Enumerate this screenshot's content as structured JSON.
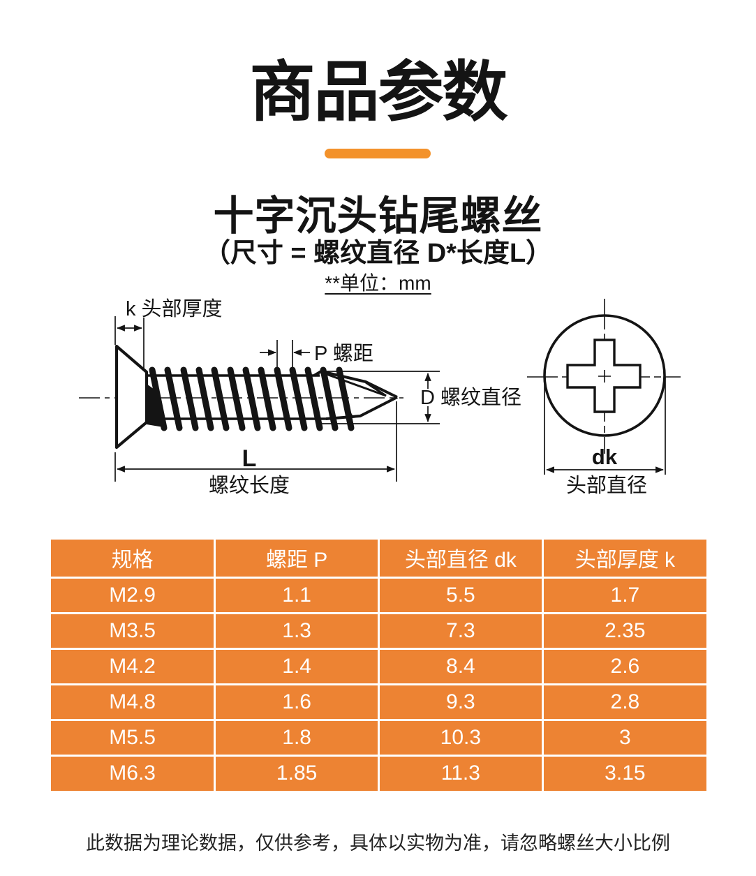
{
  "page": {
    "title": "商品参数",
    "product_name": "十字沉头钻尾螺丝",
    "size_formula": "（尺寸 = 螺纹直径 D*长度L）",
    "unit_note": "**单位：mm",
    "footer_note": "此数据为理论数据，仅供参考，具体以实物为准，请忽略螺丝大小比例"
  },
  "colors": {
    "divider_orange": "#F3922B",
    "table_orange": "#ED8333",
    "line_black": "#141414"
  },
  "diagram": {
    "labels": {
      "head_thickness": "k 头部厚度",
      "pitch": "P 螺距",
      "thread_diameter": "D 螺纹直径",
      "length_letter": "L",
      "thread_length": "螺纹长度",
      "head_diameter_letters": "dk",
      "head_diameter": "头部直径"
    }
  },
  "table": {
    "headers": [
      "规格",
      "螺距 P",
      "头部直径 dk",
      "头部厚度 k"
    ],
    "rows": [
      [
        "M2.9",
        "1.1",
        "5.5",
        "1.7"
      ],
      [
        "M3.5",
        "1.3",
        "7.3",
        "2.35"
      ],
      [
        "M4.2",
        "1.4",
        "8.4",
        "2.6"
      ],
      [
        "M4.8",
        "1.6",
        "9.3",
        "2.8"
      ],
      [
        "M5.5",
        "1.8",
        "10.3",
        "3"
      ],
      [
        "M6.3",
        "1.85",
        "11.3",
        "3.15"
      ]
    ]
  }
}
